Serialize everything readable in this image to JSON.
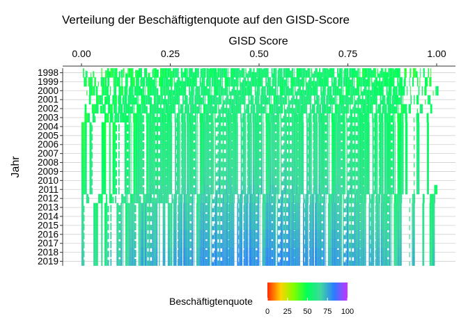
{
  "chart_data": {
    "type": "heatmap",
    "title": "Verteilung der Beschäftigtenquote auf den GISD-Score",
    "xlabel": "GISD Score",
    "ylabel": "Jahr",
    "x_axis_position": "top",
    "xlim": [
      0,
      1
    ],
    "x_ticks": [
      "0.00",
      "0.25",
      "0.50",
      "0.75",
      "1.00"
    ],
    "x_tick_values": [
      0,
      0.25,
      0.5,
      0.75,
      1.0
    ],
    "years": [
      "1998",
      "1999",
      "2000",
      "2001",
      "2002",
      "2003",
      "2004",
      "2005",
      "2006",
      "2007",
      "2008",
      "2009",
      "2010",
      "2011",
      "2012",
      "2013",
      "2014",
      "2015",
      "2016",
      "2017",
      "2018",
      "2019"
    ],
    "grid": true,
    "legend": {
      "title": "Beschäftigtenquote",
      "position": "bottom",
      "range": [
        0,
        100
      ],
      "ticks": [
        "0",
        "25",
        "50",
        "75",
        "100"
      ],
      "tick_values": [
        0,
        25,
        50,
        75,
        100
      ],
      "colors": [
        "#ff2a00",
        "#ffd200",
        "#7dff00",
        "#00ff5a",
        "#3fd8a0",
        "#2b7cff",
        "#c832ff"
      ]
    },
    "year_profiles": [
      {
        "year": "1998",
        "gisd_min": 0.0,
        "gisd_max": 0.99,
        "quote_low": 42,
        "quote_high": 55
      },
      {
        "year": "1999",
        "gisd_min": 0.0,
        "gisd_max": 1.0,
        "quote_low": 43,
        "quote_high": 55
      },
      {
        "year": "2000",
        "gisd_min": 0.0,
        "gisd_max": 1.0,
        "quote_low": 44,
        "quote_high": 56
      },
      {
        "year": "2001",
        "gisd_min": 0.0,
        "gisd_max": 0.99,
        "quote_low": 45,
        "quote_high": 58
      },
      {
        "year": "2002",
        "gisd_min": 0.0,
        "gisd_max": 0.99,
        "quote_low": 45,
        "quote_high": 58
      },
      {
        "year": "2003",
        "gisd_min": 0.0,
        "gisd_max": 0.99,
        "quote_low": 44,
        "quote_high": 58
      },
      {
        "year": "2004",
        "gisd_min": 0.0,
        "gisd_max": 0.99,
        "quote_low": 44,
        "quote_high": 59
      },
      {
        "year": "2005",
        "gisd_min": 0.0,
        "gisd_max": 0.99,
        "quote_low": 44,
        "quote_high": 60
      },
      {
        "year": "2006",
        "gisd_min": 0.0,
        "gisd_max": 0.99,
        "quote_low": 45,
        "quote_high": 61
      },
      {
        "year": "2007",
        "gisd_min": 0.0,
        "gisd_max": 0.99,
        "quote_low": 46,
        "quote_high": 62
      },
      {
        "year": "2008",
        "gisd_min": 0.0,
        "gisd_max": 0.99,
        "quote_low": 47,
        "quote_high": 63
      },
      {
        "year": "2009",
        "gisd_min": 0.0,
        "gisd_max": 0.99,
        "quote_low": 48,
        "quote_high": 64
      },
      {
        "year": "2010",
        "gisd_min": 0.0,
        "gisd_max": 0.99,
        "quote_low": 49,
        "quote_high": 65
      },
      {
        "year": "2011",
        "gisd_min": 0.0,
        "gisd_max": 1.0,
        "quote_low": 50,
        "quote_high": 67
      },
      {
        "year": "2012",
        "gisd_min": 0.0,
        "gisd_max": 1.0,
        "quote_low": 51,
        "quote_high": 68
      },
      {
        "year": "2013",
        "gisd_min": 0.0,
        "gisd_max": 1.0,
        "quote_low": 52,
        "quote_high": 70
      },
      {
        "year": "2014",
        "gisd_min": 0.0,
        "gisd_max": 1.0,
        "quote_low": 53,
        "quote_high": 71
      },
      {
        "year": "2015",
        "gisd_min": 0.0,
        "gisd_max": 1.0,
        "quote_low": 54,
        "quote_high": 72
      },
      {
        "year": "2016",
        "gisd_min": 0.0,
        "gisd_max": 1.0,
        "quote_low": 55,
        "quote_high": 74
      },
      {
        "year": "2017",
        "gisd_min": 0.0,
        "gisd_max": 1.0,
        "quote_low": 56,
        "quote_high": 75
      },
      {
        "year": "2018",
        "gisd_min": 0.0,
        "gisd_max": 1.0,
        "quote_low": 57,
        "quote_high": 77
      },
      {
        "year": "2019",
        "gisd_min": 0.0,
        "gisd_max": 1.0,
        "quote_low": 58,
        "quote_high": 78
      }
    ]
  }
}
